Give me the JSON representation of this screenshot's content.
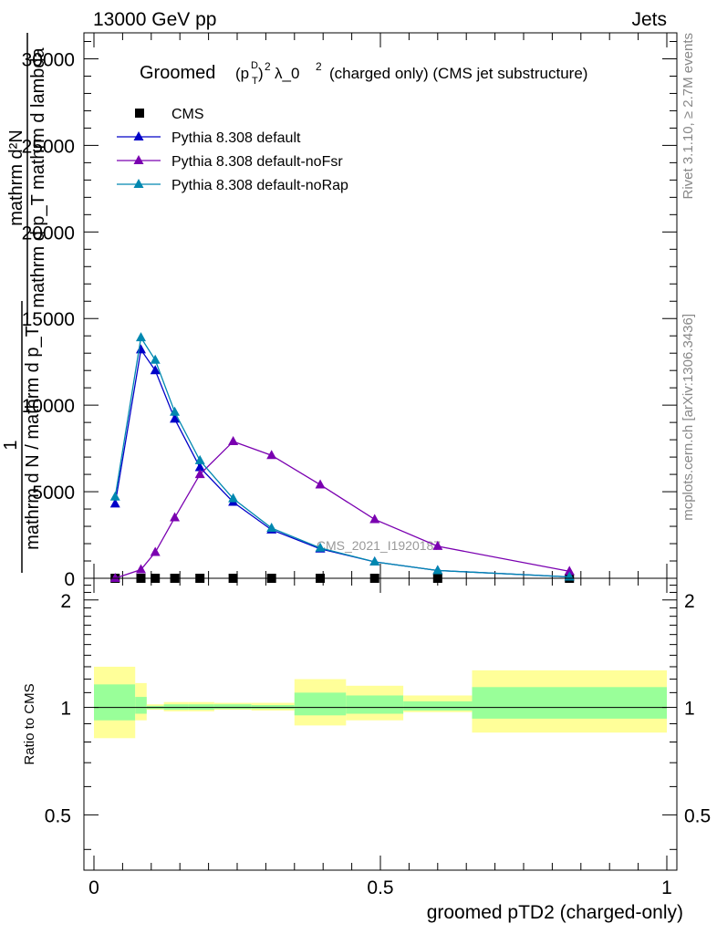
{
  "header": {
    "left": "13000 GeV pp",
    "right": "Jets"
  },
  "side_text": {
    "rivet": "Rivet 3.1.10, ≥ 2.7M events",
    "mcplots": "mcplots.cern.ch [arXiv:1306.3436]"
  },
  "chart_data": [
    {
      "type": "line",
      "title_main": "Groomed",
      "title_math": "(p",
      "title_sup_d": "D",
      "title_sub_t": "T",
      "title_after": ")",
      "title_pow": "2",
      "title_lambda": "λ_0",
      "title_lambda_pow": "2",
      "title_tail": "(charged only) (CMS jet substructure)",
      "ylabel_top": "mathrm d²N",
      "ylabel_mid": "mathrm d p_T mathrm d lambda",
      "ylabel_one": "1",
      "ylabel_bottom": "mathrm d N / mathrm d p_T",
      "watermark": "CMS_2021_I1920187",
      "ylim": [
        0,
        31500
      ],
      "y_ticks": [
        0,
        5000,
        10000,
        15000,
        20000,
        25000,
        30000
      ],
      "y_tick_labels": [
        "0",
        "5000",
        "10000",
        "15000",
        "20000",
        "25000",
        "30000"
      ],
      "legend": {
        "placement": "top-left",
        "entries": [
          {
            "label": "CMS",
            "marker": "square",
            "color": "#000000"
          },
          {
            "label": "Pythia 8.308 default",
            "marker": "triangle",
            "color": "#0000c8"
          },
          {
            "label": "Pythia 8.308 default-noFsr",
            "marker": "triangle",
            "color": "#7a00b0"
          },
          {
            "label": "Pythia 8.308 default-noRap",
            "marker": "triangle",
            "color": "#0088b0"
          }
        ]
      },
      "series": [
        {
          "name": "CMS",
          "color": "#000000",
          "x": [
            0.037,
            0.082,
            0.107,
            0.141,
            0.185,
            0.243,
            0.31,
            0.395,
            0.49,
            0.6,
            0.83
          ],
          "values": [
            0,
            0,
            0,
            0,
            0,
            0,
            0,
            0,
            0,
            0,
            0
          ]
        },
        {
          "name": "Pythia 8.308 default",
          "color": "#0000c8",
          "x": [
            0.037,
            0.082,
            0.107,
            0.141,
            0.185,
            0.243,
            0.31,
            0.395,
            0.49,
            0.6,
            0.83
          ],
          "values": [
            4300,
            13200,
            12000,
            9200,
            6400,
            4400,
            2800,
            1700,
            950,
            450,
            80
          ]
        },
        {
          "name": "Pythia 8.308 default-noFsr",
          "color": "#7a00b0",
          "x": [
            0.037,
            0.082,
            0.107,
            0.141,
            0.185,
            0.243,
            0.31,
            0.395,
            0.49,
            0.6,
            0.83
          ],
          "values": [
            0,
            500,
            1500,
            3500,
            6000,
            7900,
            7100,
            5400,
            3400,
            1850,
            400
          ]
        },
        {
          "name": "Pythia 8.308 default-noRap",
          "color": "#0088b0",
          "x": [
            0.037,
            0.082,
            0.107,
            0.141,
            0.185,
            0.243,
            0.31,
            0.395,
            0.49,
            0.6,
            0.83
          ],
          "values": [
            4700,
            13900,
            12600,
            9600,
            6800,
            4600,
            2900,
            1750,
            950,
            450,
            80
          ]
        }
      ]
    },
    {
      "type": "area",
      "ylabel": "Ratio to CMS",
      "xlabel": "groomed pTD2 (charged-only)",
      "xlim": [
        0,
        1
      ],
      "ylim": [
        0.35,
        2.3
      ],
      "x_ticks": [
        0,
        0.5,
        1
      ],
      "x_tick_labels": [
        "0",
        "0.5",
        "1"
      ],
      "y_ticks": [
        0.5,
        1,
        2
      ],
      "y_tick_labels": [
        "0.5",
        "1",
        "2"
      ],
      "band_colors": {
        "outer": "#ffff99",
        "inner": "#99ff99"
      },
      "bins": [
        {
          "lo": 0.0,
          "hi": 0.072,
          "outer": [
            0.82,
            1.3
          ],
          "inner": [
            0.92,
            1.16
          ]
        },
        {
          "lo": 0.072,
          "hi": 0.092,
          "outer": [
            0.92,
            1.17
          ],
          "inner": [
            0.96,
            1.07
          ]
        },
        {
          "lo": 0.092,
          "hi": 0.122,
          "outer": [
            0.985,
            1.02
          ],
          "inner": [
            0.99,
            1.01
          ]
        },
        {
          "lo": 0.122,
          "hi": 0.165,
          "outer": [
            0.975,
            1.035
          ],
          "inner": [
            0.985,
            1.02
          ]
        },
        {
          "lo": 0.165,
          "hi": 0.21,
          "outer": [
            0.975,
            1.035
          ],
          "inner": [
            0.985,
            1.02
          ]
        },
        {
          "lo": 0.21,
          "hi": 0.275,
          "outer": [
            0.985,
            1.03
          ],
          "inner": [
            0.99,
            1.02
          ]
        },
        {
          "lo": 0.275,
          "hi": 0.35,
          "outer": [
            0.98,
            1.03
          ],
          "inner": [
            0.99,
            1.015
          ]
        },
        {
          "lo": 0.35,
          "hi": 0.44,
          "outer": [
            0.89,
            1.2
          ],
          "inner": [
            0.95,
            1.1
          ]
        },
        {
          "lo": 0.44,
          "hi": 0.54,
          "outer": [
            0.92,
            1.15
          ],
          "inner": [
            0.96,
            1.08
          ]
        },
        {
          "lo": 0.54,
          "hi": 0.66,
          "outer": [
            0.97,
            1.08
          ],
          "inner": [
            0.98,
            1.04
          ]
        },
        {
          "lo": 0.66,
          "hi": 1.0,
          "outer": [
            0.85,
            1.27
          ],
          "inner": [
            0.93,
            1.14
          ]
        }
      ],
      "reference": 1
    }
  ]
}
